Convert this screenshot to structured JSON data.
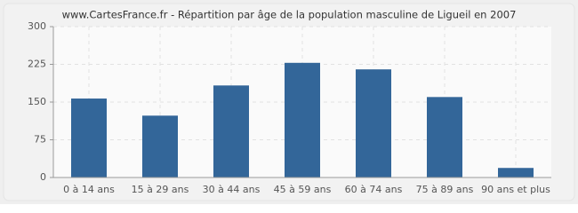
{
  "chart_data": {
    "type": "bar",
    "title": "www.CartesFrance.fr - Répartition par âge de la population masculine de Ligueil en 2007",
    "categories": [
      "0 à 14 ans",
      "15 à 29 ans",
      "30 à 44 ans",
      "45 à 59 ans",
      "60 à 74 ans",
      "75 à 89 ans",
      "90 ans et plus"
    ],
    "values": [
      157,
      123,
      183,
      228,
      215,
      160,
      19
    ],
    "color": "#336699",
    "ylim": [
      0,
      300
    ],
    "yticks": [
      0,
      75,
      150,
      225,
      300
    ],
    "grid": true
  }
}
